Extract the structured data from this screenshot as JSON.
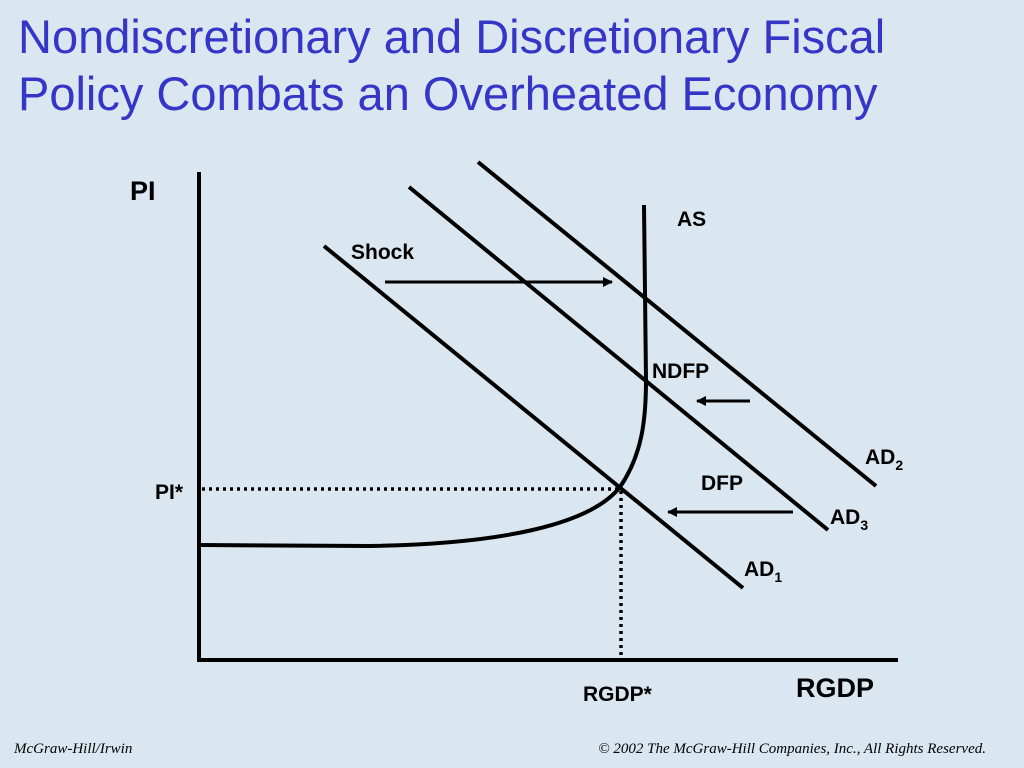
{
  "slide": {
    "title_line1": "Nondiscretionary and Discretionary Fiscal",
    "title_line2": "Policy Combats an Overheated Economy",
    "title_color": "#3535c8",
    "background": "#dbe7f0"
  },
  "diagram": {
    "y_axis_label": "PI",
    "x_axis_label": "RGDP",
    "equilibrium_price_label": "PI*",
    "equilibrium_output_label": "RGDP*",
    "curves": {
      "as": "AS",
      "ad1_main": "AD",
      "ad1_sub": "1",
      "ad2_main": "AD",
      "ad2_sub": "2",
      "ad3_main": "AD",
      "ad3_sub": "3"
    },
    "annotations": {
      "shock": "Shock",
      "ndfp": "NDFP",
      "dfp": "DFP"
    }
  },
  "footer": {
    "publisher": "McGraw-Hill/Irwin",
    "copyright": "© 2002 The McGraw-Hill Companies, Inc., All Rights Reserved."
  }
}
